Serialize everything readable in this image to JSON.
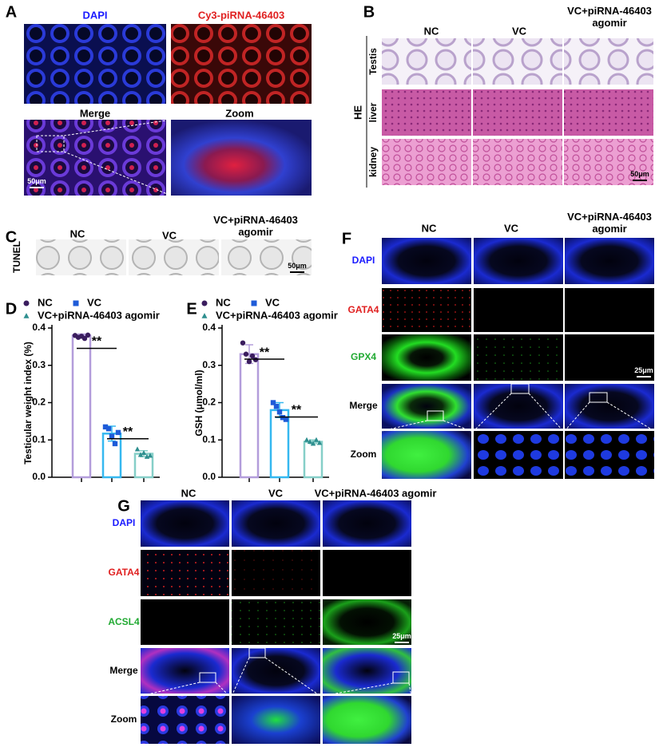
{
  "figure": {
    "A": {
      "label": "A",
      "titles": [
        {
          "text": "DAPI",
          "color": "#1a1aff"
        },
        {
          "text": "Cy3-piRNA-46403",
          "color": "#e02020"
        },
        {
          "text": "Merge",
          "color": "#000000"
        },
        {
          "text": "Zoom",
          "color": "#000000"
        }
      ],
      "scale_bar": "50μm"
    },
    "B": {
      "label": "B",
      "columns": [
        "NC",
        "VC",
        "VC+piRNA-46403 agomir"
      ],
      "stain": "HE",
      "rows": [
        "Testis",
        "liver",
        "kidney"
      ],
      "scale_bar": "50μm"
    },
    "C": {
      "label": "C",
      "columns": [
        "NC",
        "VC",
        "VC+piRNA-46403 agomir"
      ],
      "row": "TUNEL",
      "scale_bar": "50μm"
    },
    "F": {
      "label": "F",
      "columns": [
        "NC",
        "VC",
        "VC+piRNA-46403 agomir"
      ],
      "rows": [
        {
          "text": "DAPI",
          "color": "#1a1aff"
        },
        {
          "text": "GATA4",
          "color": "#e02020"
        },
        {
          "text": "GPX4",
          "color": "#22aa33"
        },
        {
          "text": "Merge",
          "color": "#000000"
        },
        {
          "text": "Zoom",
          "color": "#000000"
        }
      ],
      "scale_bar": "25μm"
    },
    "G": {
      "label": "G",
      "columns": [
        "NC",
        "VC",
        "VC+piRNA-46403 agomir"
      ],
      "rows": [
        {
          "text": "DAPI",
          "color": "#1a1aff"
        },
        {
          "text": "GATA4",
          "color": "#e02020"
        },
        {
          "text": "ACSL4",
          "color": "#22aa33"
        },
        {
          "text": "Merge",
          "color": "#000000"
        },
        {
          "text": "Zoom",
          "color": "#000000"
        }
      ],
      "scale_bar": "25μm"
    }
  },
  "chart_data": [
    {
      "type": "bar",
      "label": "D",
      "y_label": "Testicular weight index (%)",
      "ylim": [
        0,
        0.4
      ],
      "yticks": [
        {
          "value": 0,
          "label": "0.0"
        },
        0.1,
        0.2,
        0.3,
        0.4
      ],
      "series": [
        {
          "name": "NC",
          "marker": "circle",
          "color": "#3a1d5e",
          "bar_color": "#b39ddb",
          "value": 0.38,
          "error": 0.004,
          "points": [
            0.38,
            0.375,
            0.378,
            0.372,
            0.381
          ]
        },
        {
          "name": "VC",
          "marker": "square",
          "color": "#1e5bd8",
          "bar_color": "#35b8f0",
          "value": 0.117,
          "error": 0.02,
          "points": [
            0.135,
            0.13,
            0.11,
            0.09,
            0.12
          ]
        },
        {
          "name": "VC+piRNA-46403 agomir",
          "marker": "triangle",
          "color": "#2f8f8f",
          "bar_color": "#86cfc8",
          "value": 0.063,
          "error": 0.008,
          "points": [
            0.075,
            0.06,
            0.065,
            0.055,
            0.058
          ]
        }
      ],
      "significance": [
        {
          "label": "**",
          "between": [
            0,
            1
          ]
        },
        {
          "label": "**",
          "between": [
            1,
            2
          ]
        }
      ]
    },
    {
      "type": "bar",
      "label": "E",
      "y_label": "GSH (μmol/ml)",
      "ylim": [
        0,
        0.4
      ],
      "yticks": [
        {
          "value": 0,
          "label": "0.0"
        },
        0.1,
        0.2,
        0.3,
        0.4
      ],
      "series": [
        {
          "name": "NC",
          "marker": "circle",
          "color": "#3a1d5e",
          "bar_color": "#b39ddb",
          "value": 0.33,
          "error": 0.025,
          "points": [
            0.36,
            0.33,
            0.31,
            0.325,
            0.315
          ]
        },
        {
          "name": "VC",
          "marker": "square",
          "color": "#1e5bd8",
          "bar_color": "#35b8f0",
          "value": 0.18,
          "error": 0.02,
          "points": [
            0.2,
            0.19,
            0.175,
            0.16,
            0.155
          ]
        },
        {
          "name": "VC+piRNA-46403 agomir",
          "marker": "triangle",
          "color": "#2f8f8f",
          "bar_color": "#86cfc8",
          "value": 0.095,
          "error": 0.005,
          "points": [
            0.1,
            0.095,
            0.09,
            0.1,
            0.092
          ]
        }
      ],
      "significance": [
        {
          "label": "**",
          "between": [
            0,
            1
          ]
        },
        {
          "label": "**",
          "between": [
            1,
            2
          ]
        }
      ]
    }
  ]
}
